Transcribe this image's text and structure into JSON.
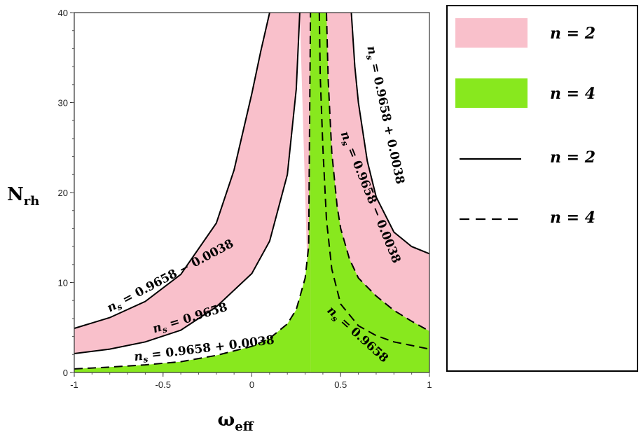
{
  "chart_data": {
    "type": "area",
    "xlabel": "ω",
    "xlabel_sub": "eff",
    "ylabel": "N",
    "ylabel_sub": "rh",
    "xlim": [
      -1,
      1
    ],
    "ylim": [
      0,
      40
    ],
    "xticks": [
      "-1",
      "-0.5",
      "0",
      "0.5",
      "1"
    ],
    "yticks": [
      "0",
      "10",
      "20",
      "30",
      "40"
    ],
    "grid": false,
    "legend_position": "right",
    "colors": {
      "n2_fill": "#f9c0cb",
      "n4_fill": "#88e81e",
      "curve": "#000000"
    },
    "series": [
      {
        "name": "n = 2",
        "curves": [
          {
            "label": "ns = 0.9658 − 0.0038",
            "points": [
              [
                -1,
                4.9
              ],
              [
                -0.8,
                6.1
              ],
              [
                -0.6,
                7.9
              ],
              [
                -0.4,
                10.9
              ],
              [
                -0.2,
                16.6
              ],
              [
                -0.1,
                22.5
              ],
              [
                0,
                31.0
              ],
              [
                0.05,
                35.7
              ],
              [
                0.1,
                40
              ]
            ]
          },
          {
            "label": "ns = 0.9658",
            "points": [
              [
                -1,
                2.1
              ],
              [
                -0.8,
                2.6
              ],
              [
                -0.6,
                3.4
              ],
              [
                -0.4,
                4.7
              ],
              [
                -0.2,
                7.3
              ],
              [
                0,
                11.0
              ],
              [
                0.1,
                14.6
              ],
              [
                0.2,
                22.0
              ],
              [
                0.25,
                31.5
              ],
              [
                0.27,
                40
              ]
            ]
          },
          {
            "label": "ns = 0.9658 + 0.0038",
            "points": [
              [
                0.56,
                40
              ],
              [
                0.58,
                34.0
              ],
              [
                0.6,
                30.0
              ],
              [
                0.65,
                23.5
              ],
              [
                0.7,
                19.5
              ],
              [
                0.8,
                15.6
              ],
              [
                0.9,
                14.0
              ],
              [
                1,
                13.2
              ]
            ]
          }
        ]
      },
      {
        "name": "n = 4",
        "curves": [
          {
            "label": "ns = 0.9658 + 0.0038",
            "points": [
              [
                -1,
                0.4
              ],
              [
                -0.8,
                0.6
              ],
              [
                -0.6,
                0.85
              ],
              [
                -0.4,
                1.2
              ],
              [
                -0.2,
                1.9
              ],
              [
                0,
                2.9
              ],
              [
                0.1,
                3.8
              ],
              [
                0.2,
                5.4
              ],
              [
                0.25,
                7.0
              ],
              [
                0.3,
                10.5
              ],
              [
                0.32,
                14.0
              ],
              [
                0.33,
                40
              ]
            ]
          },
          {
            "label": "ns = 0.9658",
            "points": [
              [
                0.38,
                40
              ],
              [
                0.385,
                33.0
              ],
              [
                0.4,
                25.0
              ],
              [
                0.42,
                17.0
              ],
              [
                0.45,
                11.5
              ],
              [
                0.5,
                7.6
              ],
              [
                0.6,
                5.2
              ],
              [
                0.7,
                4.1
              ],
              [
                0.8,
                3.4
              ],
              [
                0.9,
                3.0
              ],
              [
                1,
                2.6
              ]
            ]
          },
          {
            "label": "ns = 0.9658 − 0.0038",
            "points": [
              [
                0.42,
                40
              ],
              [
                0.43,
                32.5
              ],
              [
                0.45,
                24.5
              ],
              [
                0.48,
                18.5
              ],
              [
                0.5,
                16.0
              ],
              [
                0.55,
                12.6
              ],
              [
                0.6,
                10.5
              ],
              [
                0.7,
                8.5
              ],
              [
                0.8,
                6.9
              ],
              [
                0.9,
                5.7
              ],
              [
                1,
                4.6
              ]
            ]
          }
        ]
      }
    ],
    "annotations": [
      {
        "text_main": "n",
        "text_sub": "s",
        "text_rest": " = 0.9658 − 0.0038",
        "x": -0.8,
        "y": 6.7,
        "angle": -28
      },
      {
        "text_main": "n",
        "text_sub": "s",
        "text_rest": " = 0.9658",
        "x": -0.55,
        "y": 4.4,
        "angle": -17
      },
      {
        "text_main": "n",
        "text_sub": "s",
        "text_rest": " = 0.9658 + 0.0038",
        "x": -0.66,
        "y": 1.3,
        "angle": -7
      },
      {
        "text_main": "n",
        "text_sub": "s",
        "text_rest": " = 0.9658 + 0.0038",
        "x": 0.65,
        "y": 36.2,
        "angle": 78
      },
      {
        "text_main": "n",
        "text_sub": "s",
        "text_rest": " = 0.9658 − 0.0038",
        "x": 0.5,
        "y": 26.6,
        "angle": 68
      },
      {
        "text_main": "n",
        "text_sub": "s",
        "text_rest": " = 0.9658",
        "x": 0.42,
        "y": 6.8,
        "angle": 42
      }
    ],
    "legend": [
      {
        "kind": "fill",
        "color": "#f9c0cb",
        "label": "n = 2"
      },
      {
        "kind": "fill",
        "color": "#88e81e",
        "label": "n = 4"
      },
      {
        "kind": "solid",
        "label": "n = 2"
      },
      {
        "kind": "dashed",
        "label": "n = 4"
      }
    ]
  }
}
